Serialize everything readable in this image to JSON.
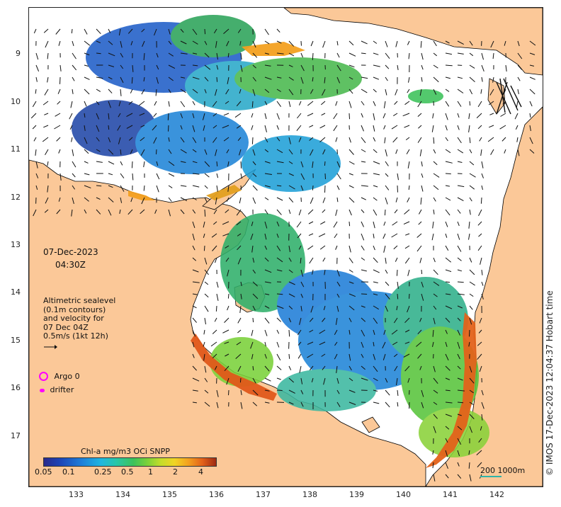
{
  "map": {
    "date": "07-Dec-2023",
    "time": "04:30Z",
    "credit": "© IMOS 17-Dec-2023 12:04:37 Hobart time",
    "x_ticks": [
      "133",
      "134",
      "135",
      "136",
      "137",
      "138",
      "139",
      "140",
      "141",
      "142"
    ],
    "y_ticks": [
      "9",
      "10",
      "11",
      "12",
      "13",
      "14",
      "15",
      "16",
      "17"
    ],
    "sealevel_note": {
      "line1": "Altimetric sealevel",
      "line2": "(0.1m contours)",
      "line3": "and velocity for",
      "line4": "07 Dec 04Z",
      "line5": "0.5m/s (1kt 12h)"
    },
    "legend": {
      "argo": "Argo 0",
      "drifter": "drifter",
      "argo_color": "#ff00ff",
      "drifter_color": "#ff00ff"
    },
    "colorbar": {
      "title": "Chl-a mg/m3 OCi SNPP",
      "ticks": [
        "0.05",
        "0.1",
        "0.25",
        "0.5",
        "1",
        "2",
        "4"
      ]
    },
    "scale": {
      "label": "200  1000m"
    },
    "colors": {
      "land": "#fbc898",
      "ocean_blank": "#ffffff",
      "low_chl": "#1f6fd6",
      "mid_chl": "#3cc25a",
      "high_chl": "#e0581a"
    }
  }
}
